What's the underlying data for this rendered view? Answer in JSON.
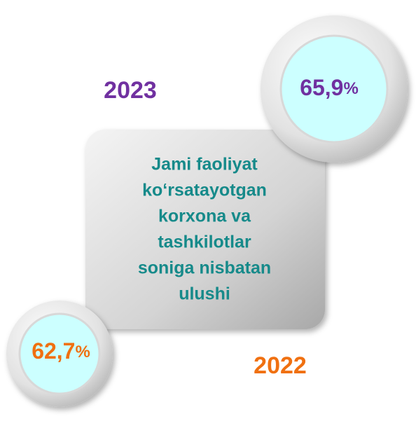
{
  "center": {
    "lines": [
      "Jami faoliyat",
      "ko‘rsatayotgan",
      "korxona va",
      "tashkilotlar",
      "soniga nisbatan",
      "ulushi"
    ]
  },
  "items": [
    {
      "year": "2023",
      "value": "65,9",
      "unit": "%"
    },
    {
      "year": "2022",
      "value": "62,7",
      "unit": "%"
    }
  ]
}
